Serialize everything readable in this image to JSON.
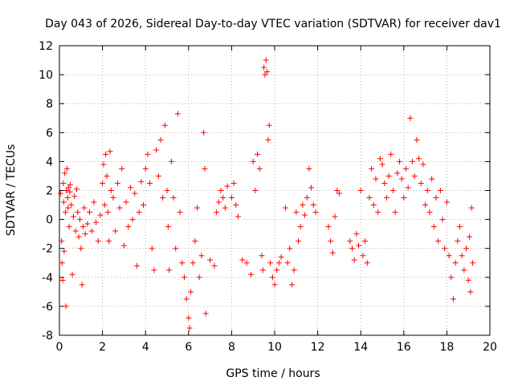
{
  "chart_data": {
    "type": "scatter",
    "title": "Day 043 of 2026, Sidereal Day-to-day VTEC variation (SDTVAR) for receiver dav1",
    "xlabel": "GPS time / hours",
    "ylabel": "SDTVAR / TECUs",
    "xlim": [
      0,
      20
    ],
    "ylim": [
      -8,
      12
    ],
    "xticks": [
      0,
      2,
      4,
      6,
      8,
      10,
      12,
      14,
      16,
      18,
      20
    ],
    "yticks": [
      -8,
      -6,
      -4,
      -2,
      0,
      2,
      4,
      6,
      8,
      10,
      12
    ],
    "grid": true,
    "marker": "+",
    "color": "#ff0000",
    "points": [
      [
        0.05,
        1.8
      ],
      [
        0.1,
        -1.5
      ],
      [
        0.12,
        -3.0
      ],
      [
        0.15,
        -4.2
      ],
      [
        0.18,
        2.5
      ],
      [
        0.2,
        1.2
      ],
      [
        0.22,
        -2.2
      ],
      [
        0.25,
        3.2
      ],
      [
        0.28,
        0.5
      ],
      [
        0.3,
        -6.0
      ],
      [
        0.32,
        2.0
      ],
      [
        0.35,
        3.5
      ],
      [
        0.38,
        1.5
      ],
      [
        0.4,
        0.8
      ],
      [
        0.42,
        2.2
      ],
      [
        0.45,
        -0.5
      ],
      [
        0.48,
        1.9
      ],
      [
        0.5,
        2.4
      ],
      [
        0.55,
        1.0
      ],
      [
        0.6,
        -3.8
      ],
      [
        0.65,
        0.2
      ],
      [
        0.7,
        1.6
      ],
      [
        0.75,
        -0.8
      ],
      [
        0.8,
        2.1
      ],
      [
        0.85,
        0.5
      ],
      [
        0.9,
        -1.2
      ],
      [
        0.95,
        0.0
      ],
      [
        1.0,
        -2.0
      ],
      [
        1.05,
        -4.5
      ],
      [
        1.1,
        -0.5
      ],
      [
        1.15,
        0.8
      ],
      [
        1.2,
        -1.0
      ],
      [
        1.3,
        -0.3
      ],
      [
        1.4,
        0.5
      ],
      [
        1.5,
        -0.8
      ],
      [
        1.6,
        1.2
      ],
      [
        1.7,
        -0.2
      ],
      [
        1.8,
        -1.5
      ],
      [
        1.9,
        0.3
      ],
      [
        2.0,
        2.5
      ],
      [
        2.05,
        3.8
      ],
      [
        2.1,
        1.0
      ],
      [
        2.15,
        4.5
      ],
      [
        2.2,
        3.0
      ],
      [
        2.25,
        0.5
      ],
      [
        2.3,
        -1.5
      ],
      [
        2.35,
        4.7
      ],
      [
        2.4,
        2.0
      ],
      [
        2.5,
        1.5
      ],
      [
        2.6,
        -0.8
      ],
      [
        2.7,
        2.5
      ],
      [
        2.8,
        0.8
      ],
      [
        2.9,
        3.5
      ],
      [
        3.0,
        -1.8
      ],
      [
        3.1,
        1.2
      ],
      [
        3.2,
        -0.5
      ],
      [
        3.3,
        2.2
      ],
      [
        3.4,
        0.0
      ],
      [
        3.5,
        1.8
      ],
      [
        3.6,
        -3.2
      ],
      [
        3.7,
        0.5
      ],
      [
        3.8,
        2.6
      ],
      [
        3.9,
        1.0
      ],
      [
        4.0,
        3.5
      ],
      [
        4.1,
        4.5
      ],
      [
        4.2,
        2.5
      ],
      [
        4.3,
        -2.0
      ],
      [
        4.4,
        -3.5
      ],
      [
        4.5,
        4.8
      ],
      [
        4.6,
        3.0
      ],
      [
        4.7,
        5.5
      ],
      [
        4.8,
        1.5
      ],
      [
        4.9,
        6.5
      ],
      [
        5.0,
        2.0
      ],
      [
        5.05,
        -0.5
      ],
      [
        5.1,
        -3.5
      ],
      [
        5.2,
        4.0
      ],
      [
        5.3,
        1.5
      ],
      [
        5.4,
        -2.0
      ],
      [
        5.5,
        7.3
      ],
      [
        5.6,
        0.5
      ],
      [
        5.7,
        -3.0
      ],
      [
        5.8,
        -4.0
      ],
      [
        5.9,
        -5.5
      ],
      [
        6.0,
        -6.8
      ],
      [
        6.05,
        -7.5
      ],
      [
        6.1,
        -5.0
      ],
      [
        6.2,
        -3.0
      ],
      [
        6.3,
        -1.5
      ],
      [
        6.4,
        0.8
      ],
      [
        6.5,
        -4.0
      ],
      [
        6.6,
        -2.5
      ],
      [
        6.7,
        6.0
      ],
      [
        6.75,
        3.5
      ],
      [
        6.8,
        -6.5
      ],
      [
        7.0,
        -2.8
      ],
      [
        7.2,
        -3.2
      ],
      [
        7.3,
        0.5
      ],
      [
        7.4,
        1.2
      ],
      [
        7.5,
        2.0
      ],
      [
        7.6,
        1.5
      ],
      [
        7.7,
        0.8
      ],
      [
        7.8,
        2.3
      ],
      [
        8.0,
        1.5
      ],
      [
        8.1,
        2.5
      ],
      [
        8.2,
        1.0
      ],
      [
        8.3,
        0.2
      ],
      [
        8.5,
        -2.8
      ],
      [
        8.7,
        -3.0
      ],
      [
        8.9,
        -3.8
      ],
      [
        9.0,
        4.0
      ],
      [
        9.1,
        2.0
      ],
      [
        9.2,
        4.5
      ],
      [
        9.3,
        3.5
      ],
      [
        9.4,
        -2.5
      ],
      [
        9.45,
        -3.5
      ],
      [
        9.5,
        10.5
      ],
      [
        9.55,
        10.0
      ],
      [
        9.6,
        11.0
      ],
      [
        9.65,
        10.2
      ],
      [
        9.7,
        5.5
      ],
      [
        9.75,
        6.5
      ],
      [
        9.8,
        -3.0
      ],
      [
        9.9,
        -4.0
      ],
      [
        10.0,
        -4.5
      ],
      [
        10.1,
        -3.5
      ],
      [
        10.2,
        -3.0
      ],
      [
        10.3,
        -2.6
      ],
      [
        10.5,
        0.8
      ],
      [
        10.6,
        -3.0
      ],
      [
        10.7,
        -2.0
      ],
      [
        10.8,
        -4.5
      ],
      [
        10.9,
        -3.5
      ],
      [
        11.0,
        0.5
      ],
      [
        11.1,
        -1.5
      ],
      [
        11.2,
        -0.5
      ],
      [
        11.3,
        1.0
      ],
      [
        11.4,
        0.3
      ],
      [
        11.5,
        1.5
      ],
      [
        11.6,
        3.5
      ],
      [
        11.7,
        2.2
      ],
      [
        11.8,
        1.0
      ],
      [
        11.9,
        0.5
      ],
      [
        12.5,
        -0.5
      ],
      [
        12.6,
        -1.5
      ],
      [
        12.7,
        -2.3
      ],
      [
        12.8,
        0.2
      ],
      [
        12.9,
        2.0
      ],
      [
        13.0,
        1.8
      ],
      [
        13.5,
        -1.5
      ],
      [
        13.6,
        -2.0
      ],
      [
        13.7,
        -2.8
      ],
      [
        13.8,
        -1.0
      ],
      [
        13.9,
        -1.8
      ],
      [
        14.0,
        2.0
      ],
      [
        14.1,
        -2.5
      ],
      [
        14.2,
        -1.5
      ],
      [
        14.3,
        -3.0
      ],
      [
        14.4,
        1.5
      ],
      [
        14.5,
        3.5
      ],
      [
        14.6,
        1.0
      ],
      [
        14.7,
        2.8
      ],
      [
        14.8,
        0.5
      ],
      [
        14.9,
        4.2
      ],
      [
        15.0,
        3.8
      ],
      [
        15.1,
        2.5
      ],
      [
        15.2,
        1.5
      ],
      [
        15.3,
        3.0
      ],
      [
        15.4,
        4.5
      ],
      [
        15.5,
        2.0
      ],
      [
        15.6,
        0.5
      ],
      [
        15.7,
        3.2
      ],
      [
        15.8,
        4.0
      ],
      [
        15.9,
        2.8
      ],
      [
        16.0,
        1.5
      ],
      [
        16.1,
        3.5
      ],
      [
        16.2,
        2.2
      ],
      [
        16.3,
        7.0
      ],
      [
        16.4,
        4.0
      ],
      [
        16.5,
        3.0
      ],
      [
        16.6,
        5.5
      ],
      [
        16.7,
        4.2
      ],
      [
        16.8,
        2.5
      ],
      [
        16.9,
        3.8
      ],
      [
        17.0,
        1.0
      ],
      [
        17.1,
        2.0
      ],
      [
        17.2,
        0.5
      ],
      [
        17.3,
        2.8
      ],
      [
        17.4,
        -0.5
      ],
      [
        17.5,
        1.5
      ],
      [
        17.6,
        -1.5
      ],
      [
        17.7,
        2.0
      ],
      [
        17.8,
        0.0
      ],
      [
        17.9,
        -2.0
      ],
      [
        18.0,
        1.2
      ],
      [
        18.1,
        -2.5
      ],
      [
        18.2,
        -4.0
      ],
      [
        18.3,
        -5.5
      ],
      [
        18.4,
        -3.0
      ],
      [
        18.5,
        -1.5
      ],
      [
        18.6,
        -0.5
      ],
      [
        18.7,
        -2.5
      ],
      [
        18.8,
        -3.5
      ],
      [
        18.9,
        -2.0
      ],
      [
        19.0,
        -4.2
      ],
      [
        19.05,
        -1.2
      ],
      [
        19.1,
        -5.0
      ],
      [
        19.15,
        0.8
      ],
      [
        19.2,
        -3.0
      ]
    ]
  }
}
